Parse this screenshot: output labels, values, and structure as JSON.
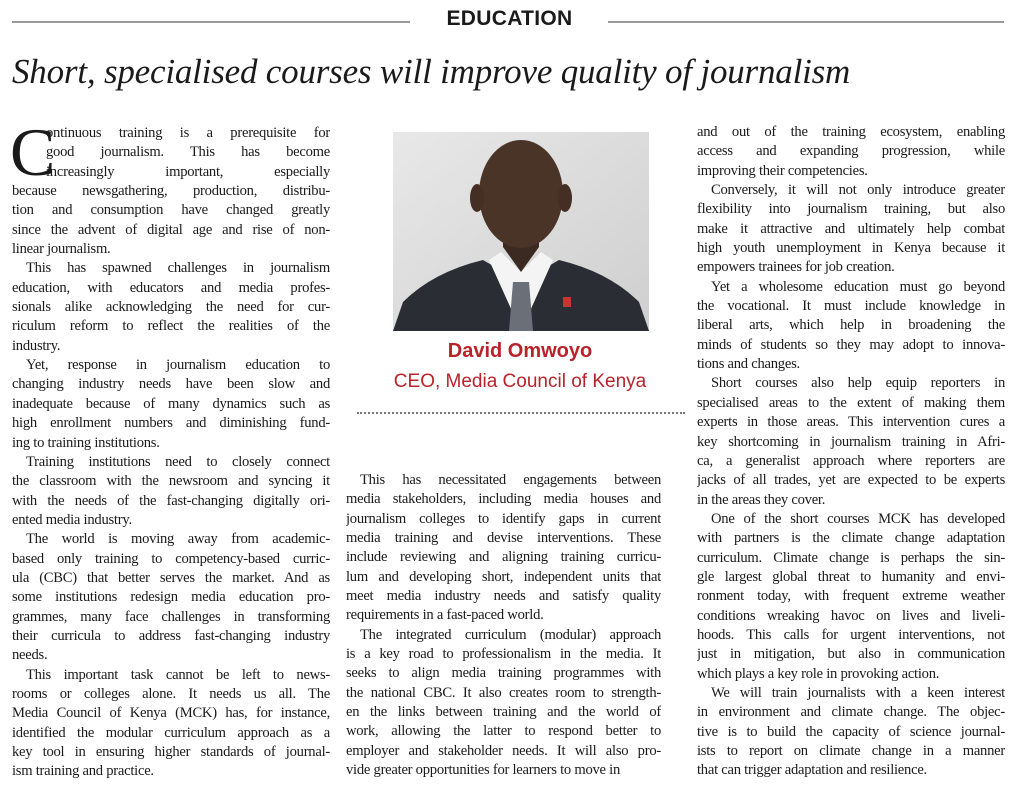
{
  "section": "EDUCATION",
  "headline": "Short, specialised courses will improve quality of journalism",
  "drop_cap": "C",
  "profile": {
    "name": "David Omwoyo",
    "role": "CEO, Media Council of Kenya"
  },
  "columns": [
    [
      [
        "ontinuous training is a prerequisite for",
        "good journalism. This has become",
        "increasingly important, especially",
        "because newsgathering, production, distribu-",
        "tion and consumption have changed greatly",
        "since the advent of digital age and rise of non-",
        "linear journalism."
      ],
      [
        "This has spawned challenges in journalism",
        "education, with educators and media profes-",
        "sionals alike acknowledging the need for cur-",
        "riculum reform to reflect the realities of the",
        "industry."
      ],
      [
        "Yet, response in journalism education to",
        "changing industry needs have been slow and",
        "inadequate because of many dynamics such as",
        "high enrollment numbers and diminishing fund-",
        "ing to training institutions."
      ],
      [
        "Training institutions need to closely connect",
        "the classroom with the newsroom and syncing it",
        "with the needs of the fast-changing digitally ori-",
        "ented media industry."
      ],
      [
        "The world is moving away from academic-",
        "based only training to competency-based curric-",
        "ula (CBC) that better serves the market. And as",
        "some institutions redesign media education pro-",
        "grammes, many face challenges in transforming",
        "their curricula to address fast-changing industry",
        "needs."
      ],
      [
        "This important task cannot be left to news-",
        "rooms or colleges alone. It needs us all. The",
        "Media Council of Kenya (MCK) has, for instance,",
        "identified the modular curriculum approach as a",
        "key tool in ensuring higher standards of journal-",
        "ism training and practice."
      ]
    ],
    [
      [
        "This has necessitated engagements between",
        "media stakeholders, including media houses and",
        "journalism colleges to identify gaps in current",
        "media training and devise interventions. These",
        "include reviewing and aligning training curricu-",
        "lum and developing short, independent units that",
        "meet media industry needs and satisfy quality",
        "requirements in a fast-paced world."
      ],
      [
        "The integrated curriculum (modular) approach",
        "is a key road to professionalism in the media. It",
        "seeks to align media training programmes with",
        "the national CBC. It also creates room to strength-",
        "en the links between training and the world of",
        "work, allowing the latter to respond better to",
        "employer and stakeholder needs. It will also pro-",
        "vide greater opportunities for learners to move in"
      ]
    ],
    [
      [
        "and out of the training ecosystem, enabling",
        "access and expanding progression, while",
        "improving their competencies."
      ],
      [
        "Conversely, it will not only introduce greater",
        "flexibility into journalism training, but also",
        "make it attractive and ultimately help combat",
        "high youth unemployment in Kenya because it",
        "empowers trainees for job creation."
      ],
      [
        "Yet a wholesome education must go beyond",
        "the vocational. It must include knowledge in",
        "liberal arts, which help in broadening the",
        "minds of students so they may adopt to innova-",
        "tions and changes."
      ],
      [
        "Short courses also help equip reporters in",
        "specialised areas to the extent of making them",
        "experts in those areas. This intervention cures a",
        "key shortcoming in journalism training in Afri-",
        "ca, a generalist approach where reporters are",
        "jacks of all trades, yet are expected to be experts",
        "in the areas they cover."
      ],
      [
        "One of the short courses MCK has developed",
        "with partners is the climate change adaptation",
        "curriculum. Climate change is perhaps the sin-",
        "gle largest global threat to humanity and envi-",
        "ronment today, with frequent extreme weather",
        "conditions wreaking havoc on lives and liveli-",
        "hoods. This calls for urgent interventions, not",
        "just in mitigation, but also in communication",
        "which plays a key role in provoking action."
      ],
      [
        "We will train journalists with a keen interest",
        "in environment and climate change. The objec-",
        "tive is to build the capacity of science journal-",
        "ists to report on climate change in a manner",
        "that can trigger adaptation and resilience."
      ]
    ]
  ]
}
